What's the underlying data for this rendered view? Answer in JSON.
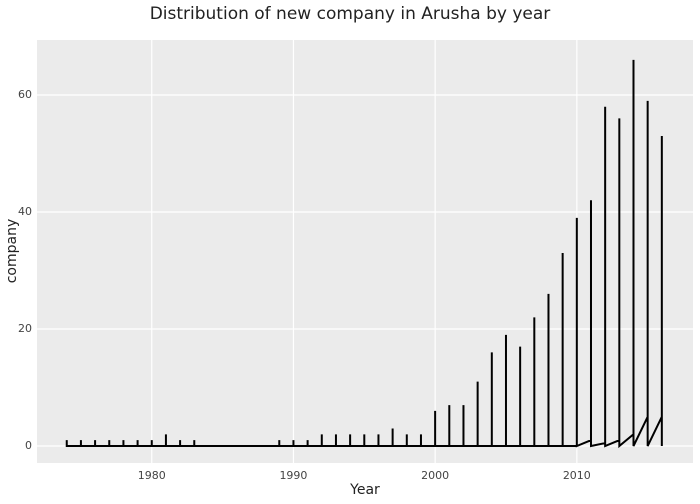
{
  "chart_data": {
    "type": "line",
    "title": "Distribution of new company in Arusha by year",
    "x_label": "Year",
    "y_label": "company",
    "x": [
      1974,
      1974,
      1974,
      1975,
      1975,
      1975,
      1976,
      1976,
      1976,
      1977,
      1977,
      1977,
      1978,
      1978,
      1978,
      1979,
      1979,
      1979,
      1980,
      1980,
      1980,
      1981,
      1981,
      1981,
      1982,
      1982,
      1982,
      1983,
      1983,
      1983,
      1989,
      1989,
      1989,
      1990,
      1990,
      1990,
      1991,
      1991,
      1991,
      1992,
      1992,
      1992,
      1993,
      1993,
      1993,
      1994,
      1994,
      1994,
      1995,
      1995,
      1995,
      1996,
      1996,
      1996,
      1997,
      1997,
      1997,
      1998,
      1998,
      1998,
      1999,
      1999,
      1999,
      2000,
      2000,
      2000,
      2001,
      2001,
      2001,
      2002,
      2002,
      2002,
      2003,
      2003,
      2003,
      2004,
      2004,
      2004,
      2005,
      2005,
      2005,
      2006,
      2006,
      2006,
      2007,
      2007,
      2007,
      2008,
      2008,
      2008,
      2009,
      2009,
      2009,
      2010,
      2010,
      2010,
      2011,
      2011,
      2011,
      2012,
      2012,
      2012,
      2013,
      2013,
      2013,
      2014,
      2014,
      2014,
      2015,
      2015,
      2015,
      2016,
      2016,
      2016
    ],
    "series": [
      {
        "color": "#000000",
        "values": [
          0,
          1,
          0,
          0,
          1,
          0,
          0,
          1,
          0,
          0,
          1,
          0,
          0,
          1,
          0,
          0,
          1,
          0,
          0,
          1,
          0,
          0,
          2,
          0,
          0,
          1,
          0,
          0,
          1,
          0,
          0,
          1,
          0,
          0,
          1,
          0,
          0,
          1,
          0,
          0,
          2,
          0,
          0,
          2,
          0,
          0,
          2,
          0,
          0,
          2,
          0,
          0,
          2,
          0,
          0,
          3,
          0,
          0,
          2,
          0,
          0,
          2,
          0,
          0,
          6,
          0,
          0,
          7,
          0,
          0,
          7,
          0,
          0,
          11,
          0,
          0,
          16,
          0,
          0,
          19,
          0,
          0,
          17,
          0,
          0,
          22,
          0,
          0,
          26,
          0,
          0,
          33,
          0,
          0,
          39,
          0,
          1,
          42,
          0,
          0.5,
          58,
          0,
          1,
          56,
          0,
          2,
          66,
          0,
          5,
          59,
          0,
          5,
          53,
          0
        ]
      }
    ],
    "xlim": [
      1971.9,
      2018.2
    ],
    "xticks": [
      1980,
      1990,
      2000,
      2010
    ],
    "ylim": [
      -2.9,
      69.4
    ],
    "yticks": [
      0,
      20,
      40,
      60
    ],
    "grid": true
  }
}
